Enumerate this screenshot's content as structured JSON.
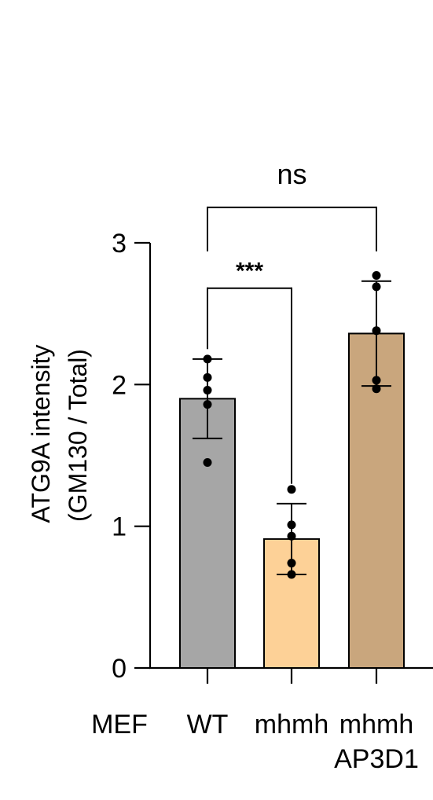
{
  "chart_data": {
    "type": "bar",
    "ylabel": "ATG9A intensity",
    "ylabel2": "(GM130 / Total)",
    "ylim": [
      0,
      3
    ],
    "yticks": [
      "0",
      "1",
      "2",
      "3"
    ],
    "row_label": "MEF",
    "categories": [
      "WT",
      "mhmh",
      "mhmh AP3D1"
    ],
    "category_lines": [
      [
        "WT"
      ],
      [
        "mhmh"
      ],
      [
        "mhmh",
        "AP3D1"
      ]
    ],
    "values": [
      1.9,
      0.91,
      2.36
    ],
    "sd": [
      0.28,
      0.25,
      0.37
    ],
    "points": [
      [
        2.18,
        2.05,
        1.96,
        1.86,
        1.45
      ],
      [
        1.26,
        1.01,
        0.93,
        0.74,
        0.66
      ],
      [
        2.77,
        2.69,
        2.38,
        2.03,
        1.97
      ]
    ],
    "colors": [
      "#a6a6a6",
      "#fdd197",
      "#c9a67d"
    ],
    "annotations": [
      {
        "text": "***",
        "from": 0,
        "to": 1,
        "level": 2.68,
        "drop_left": 2.25,
        "drop_right": 1.3
      },
      {
        "text": "ns",
        "from": 0,
        "to": 2,
        "level": 3.25,
        "drop_left": 2.94,
        "drop_right": 2.94
      }
    ],
    "legend": "none",
    "grid": false
  }
}
